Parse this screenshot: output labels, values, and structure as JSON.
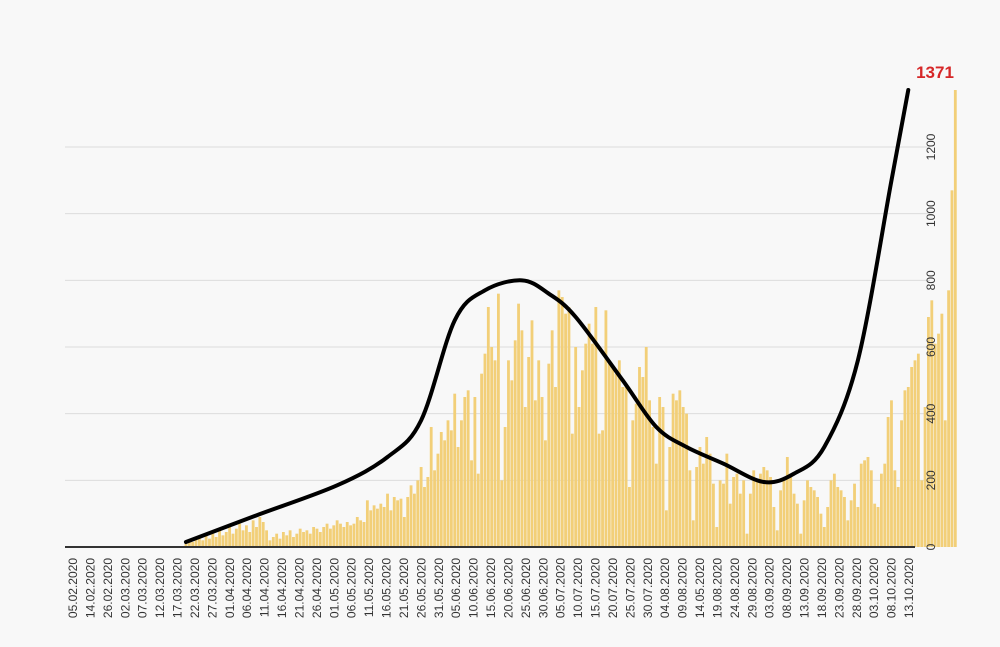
{
  "chart_data": {
    "type": "bar",
    "title": "",
    "xlabel": "",
    "ylabel": "",
    "ylim": [
      0,
      1371
    ],
    "y_ticks": [
      0,
      200,
      400,
      600,
      800,
      1000,
      1200
    ],
    "y_axis_side": "right",
    "grid": true,
    "x_range": [
      "05.02.2020",
      "15.10.2020"
    ],
    "x_tick_labels": [
      "05.02.2020",
      "14.02.2020",
      "26.02.2020",
      "02.03.2020",
      "07.03.2020",
      "12.03.2020",
      "17.03.2020",
      "22.03.2020",
      "27.03.2020",
      "01.04.2020",
      "06.04.2020",
      "11.04.2020",
      "16.04.2020",
      "21.04.2020",
      "26.04.2020",
      "01.05.2020",
      "06.05.2020",
      "11.05.2020",
      "16.05.2020",
      "21.05.2020",
      "26.05.2020",
      "31.05.2020",
      "05.06.2020",
      "10.06.2020",
      "15.06.2020",
      "20.06.2020",
      "25.06.2020",
      "30.06.2020",
      "05.07.2020",
      "10.07.2020",
      "15.07.2020",
      "20.07.2020",
      "25.07.2020",
      "30.07.2020",
      "04.08.2020",
      "09.08.2020",
      "14.05.2020",
      "19.08.2020",
      "24.08.2020",
      "29.08.2020",
      "03.09.2020",
      "08.09.2020",
      "13.09.2020",
      "18.09.2020",
      "23.09.2020",
      "28.09.2020",
      "03.10.2020",
      "08.10.2020",
      "13.10.2020"
    ],
    "bar_start_date": "12.03.2020",
    "bar_color": "#f2cf78",
    "series": [
      {
        "type": "bar",
        "values": [
          10,
          20,
          15,
          25,
          30,
          20,
          35,
          25,
          40,
          30,
          50,
          35,
          45,
          60,
          40,
          55,
          70,
          50,
          65,
          45,
          80,
          60,
          90,
          75,
          50,
          20,
          30,
          40,
          25,
          45,
          35,
          50,
          30,
          40,
          55,
          45,
          50,
          40,
          60,
          55,
          45,
          60,
          70,
          55,
          65,
          80,
          70,
          60,
          75,
          65,
          70,
          90,
          80,
          75,
          140,
          110,
          125,
          115,
          130,
          120,
          160,
          110,
          150,
          140,
          145,
          90,
          150,
          185,
          160,
          200,
          240,
          180,
          210,
          360,
          230,
          280,
          345,
          320,
          380,
          350,
          460,
          300,
          380,
          450,
          470,
          260,
          450,
          220,
          520,
          580,
          720,
          600,
          560,
          760,
          200,
          360,
          560,
          500,
          620,
          730,
          650,
          420,
          570,
          680,
          440,
          560,
          450,
          320,
          550,
          650,
          480,
          770,
          750,
          700,
          720,
          340,
          600,
          420,
          530,
          610,
          670,
          610,
          720,
          340,
          350,
          710,
          550,
          540,
          520,
          560,
          480,
          490,
          180,
          380,
          430,
          540,
          510,
          600,
          440,
          360,
          250,
          450,
          420,
          110,
          300,
          460,
          440,
          470,
          420,
          400,
          230,
          80,
          240,
          300,
          250,
          330,
          280,
          190,
          60,
          200,
          190,
          280,
          130,
          210,
          220,
          160,
          200,
          40,
          160,
          230,
          200,
          220,
          240,
          230,
          210,
          120,
          50,
          170,
          200,
          270,
          220,
          160,
          130,
          40,
          140,
          200,
          180,
          170,
          150,
          100,
          60,
          120,
          200,
          220,
          180,
          170,
          150,
          80,
          140,
          190,
          120,
          250,
          260,
          270,
          230,
          130,
          120,
          220,
          250,
          390,
          440,
          230,
          180,
          380,
          470,
          480,
          540,
          560,
          580,
          200,
          420,
          690,
          740,
          610,
          640,
          700,
          380,
          770,
          1070,
          1371
        ],
        "peak_label": "1371"
      },
      {
        "type": "line",
        "color": "#000000",
        "points": [
          {
            "date": "12.03.2020",
            "y": 15
          },
          {
            "date": "02.04.2020",
            "y": 95
          },
          {
            "date": "26.04.2020",
            "y": 185
          },
          {
            "date": "11.05.2020",
            "y": 270
          },
          {
            "date": "21.05.2020",
            "y": 380
          },
          {
            "date": "31.05.2020",
            "y": 680
          },
          {
            "date": "09.06.2020",
            "y": 770
          },
          {
            "date": "20.06.2020",
            "y": 800
          },
          {
            "date": "28.06.2020",
            "y": 760
          },
          {
            "date": "06.07.2020",
            "y": 690
          },
          {
            "date": "20.07.2020",
            "y": 500
          },
          {
            "date": "30.07.2020",
            "y": 360
          },
          {
            "date": "08.08.2020",
            "y": 300
          },
          {
            "date": "19.08.2020",
            "y": 250
          },
          {
            "date": "31.08.2020",
            "y": 195
          },
          {
            "date": "09.09.2020",
            "y": 220
          },
          {
            "date": "18.09.2020",
            "y": 300
          },
          {
            "date": "28.09.2020",
            "y": 560
          },
          {
            "date": "08.10.2020",
            "y": 1100
          },
          {
            "date": "13.10.2020",
            "y": 1371
          }
        ]
      }
    ]
  }
}
